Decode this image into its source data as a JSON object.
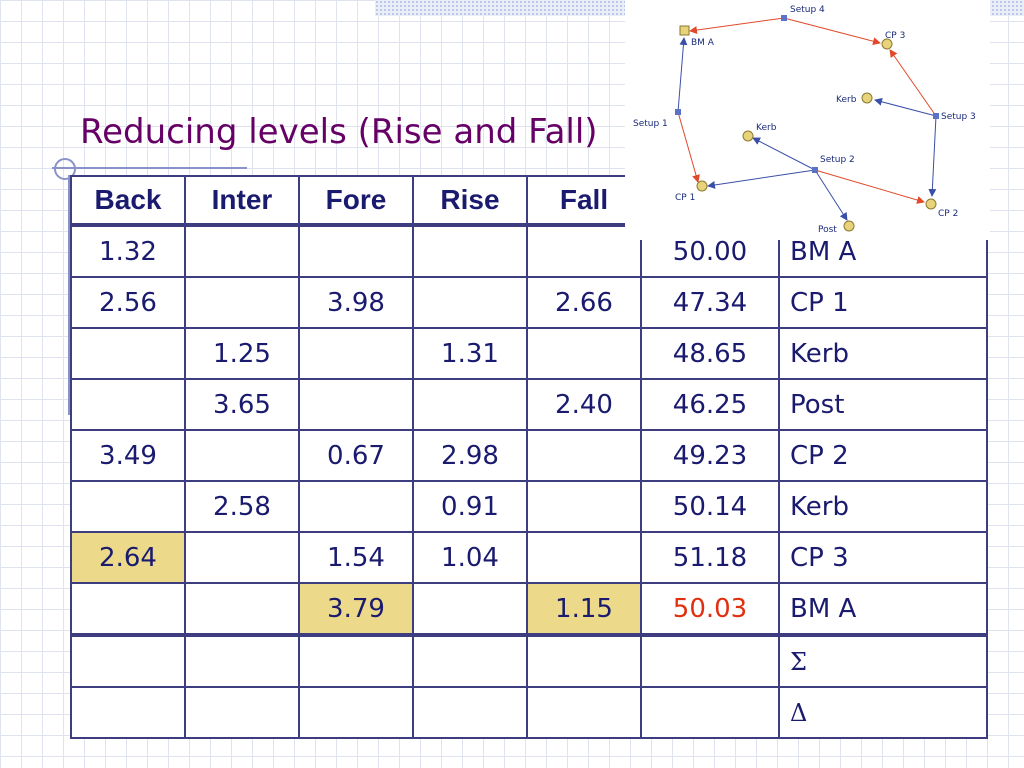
{
  "title": "Reducing levels (Rise and Fall)",
  "table": {
    "headers": [
      "Back",
      "Inter",
      "Fore",
      "Rise",
      "Fall",
      "",
      ""
    ],
    "rows": [
      [
        "1.32",
        "",
        "",
        "",
        "",
        "50.00",
        "BM A"
      ],
      [
        "2.56",
        "",
        "3.98",
        "",
        "2.66",
        "47.34",
        "CP 1"
      ],
      [
        "",
        "1.25",
        "",
        "1.31",
        "",
        "48.65",
        "Kerb"
      ],
      [
        "",
        "3.65",
        "",
        "",
        "2.40",
        "46.25",
        "Post"
      ],
      [
        "3.49",
        "",
        "0.67",
        "2.98",
        "",
        "49.23",
        "CP 2"
      ],
      [
        "",
        "2.58",
        "",
        "0.91",
        "",
        "50.14",
        "Kerb"
      ],
      [
        "2.64",
        "",
        "1.54",
        "1.04",
        "",
        "51.18",
        "CP 3"
      ],
      [
        "",
        "",
        "3.79",
        "",
        "1.15",
        "50.03",
        "BM A"
      ],
      [
        "",
        "",
        "",
        "",
        "",
        "",
        "Σ"
      ],
      [
        "",
        "",
        "",
        "",
        "",
        "",
        "Δ"
      ]
    ]
  },
  "colors": {
    "title": "#660066",
    "highlight": "#ecd98a",
    "misclosure": "#e03010",
    "table_text": "#1a1a6e"
  },
  "diagram": {
    "labels": {
      "setup4": "Setup 4",
      "cp3": "CP 3",
      "bma": "BM A",
      "kerb_top": "Kerb",
      "setup3": "Setup 3",
      "setup1": "Setup 1",
      "kerb_mid": "Kerb",
      "setup2": "Setup 2",
      "cp1": "CP 1",
      "cp2": "CP 2",
      "post": "Post"
    }
  }
}
